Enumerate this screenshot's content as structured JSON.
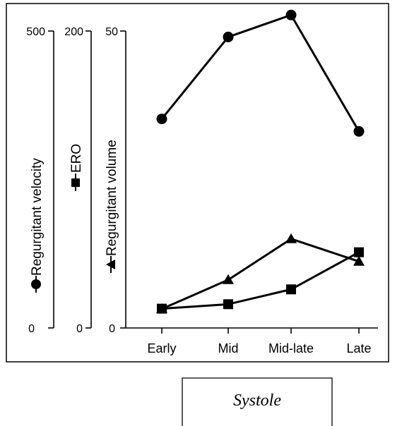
{
  "chart_data": {
    "type": "line",
    "categories": [
      "Early",
      "Mid",
      "Mid-late",
      "Late"
    ],
    "caption": "Systole",
    "grid": false,
    "axes": [
      {
        "key": "velocity",
        "label": "Regurgitant velocity",
        "marker": "circle",
        "ylim": [
          0,
          500
        ],
        "tick_labels": [
          "0",
          "500"
        ]
      },
      {
        "key": "ero",
        "label": "ERO",
        "marker": "square",
        "ylim": [
          0,
          200
        ],
        "tick_labels": [
          "0",
          "200"
        ]
      },
      {
        "key": "volume",
        "label": "Regurgitant volume",
        "marker": "triangle",
        "ylim": [
          0,
          50
        ],
        "tick_labels": [
          "0",
          "50"
        ]
      }
    ],
    "series": [
      {
        "name": "Regurgitant velocity",
        "marker": "circle",
        "axis": "velocity",
        "values": [
          352,
          490,
          527,
          331
        ]
      },
      {
        "name": "ERO",
        "marker": "square",
        "axis": "ero",
        "values": [
          13,
          16,
          26,
          51
        ]
      },
      {
        "name": "Regurgitant volume",
        "marker": "triangle",
        "axis": "volume",
        "values": [
          3.2,
          8.1,
          15.0,
          11.2
        ]
      }
    ]
  }
}
